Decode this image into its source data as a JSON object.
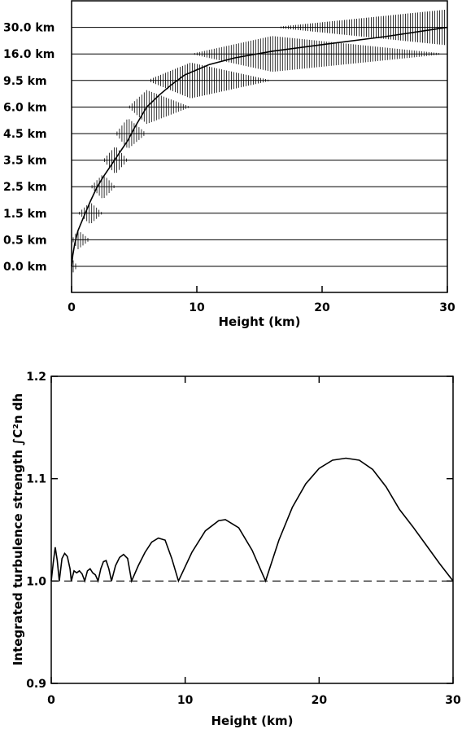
{
  "chart_data": [
    {
      "type": "line",
      "title": "",
      "xlabel": "Height (km)",
      "ylabel": "",
      "xlim": [
        0,
        30
      ],
      "x_ticks": [
        0,
        10,
        20,
        30
      ],
      "layers": [
        {
          "label": "0.0 km",
          "height_km": 0.0
        },
        {
          "label": "0.5 km",
          "height_km": 0.5
        },
        {
          "label": "1.5 km",
          "height_km": 1.5
        },
        {
          "label": "2.5 km",
          "height_km": 2.5
        },
        {
          "label": "3.5 km",
          "height_km": 3.5
        },
        {
          "label": "4.5 km",
          "height_km": 4.5
        },
        {
          "label": "6.0 km",
          "height_km": 6.0
        },
        {
          "label": "9.5 km",
          "height_km": 9.5
        },
        {
          "label": "16.0 km",
          "height_km": 16.0
        },
        {
          "label": "30.0 km",
          "height_km": 30.0
        }
      ],
      "series": [
        {
          "values": [
            [
              0,
              0
            ],
            [
              0.1,
              0.42
            ],
            [
              0.25,
              0.84
            ],
            [
              0.5,
              1.33
            ],
            [
              1.0,
              1.9
            ],
            [
              1.5,
              2.45
            ],
            [
              2.0,
              2.95
            ],
            [
              2.5,
              3.35
            ],
            [
              3.0,
              3.7
            ],
            [
              3.5,
              4.05
            ],
            [
              4.0,
              4.4
            ],
            [
              4.5,
              4.75
            ],
            [
              5.0,
              5.2
            ],
            [
              5.5,
              5.6
            ],
            [
              6.0,
              6.0
            ],
            [
              7.0,
              6.45
            ],
            [
              8.0,
              6.85
            ],
            [
              9.0,
              7.2
            ],
            [
              9.5,
              7.3
            ],
            [
              11.0,
              7.6
            ],
            [
              13.0,
              7.85
            ],
            [
              16.0,
              8.1
            ],
            [
              20.0,
              8.35
            ],
            [
              25.0,
              8.65
            ],
            [
              30.0,
              9.0
            ]
          ]
        }
      ]
    },
    {
      "type": "line",
      "title": "",
      "xlabel": "Height (km)",
      "ylabel": "Integrated turbulence strength ∫C²n dh",
      "xlim": [
        0,
        30
      ],
      "ylim": [
        0.9,
        1.2
      ],
      "x_ticks": [
        0,
        10,
        20,
        30
      ],
      "y_ticks": [
        0.9,
        1.0,
        1.1,
        1.2
      ],
      "y_tick_labels": [
        "0.9",
        "1.0",
        "1.1",
        "1.2"
      ],
      "reference_line": {
        "y": 1.0,
        "style": "dashed"
      },
      "series": [
        {
          "values": [
            [
              0,
              1.0
            ],
            [
              0.15,
              1.018
            ],
            [
              0.3,
              1.033
            ],
            [
              0.45,
              1.02
            ],
            [
              0.6,
              1.0
            ],
            [
              0.8,
              1.022
            ],
            [
              1.0,
              1.027
            ],
            [
              1.2,
              1.024
            ],
            [
              1.4,
              1.012
            ],
            [
              1.5,
              1.0
            ],
            [
              1.7,
              1.01
            ],
            [
              1.9,
              1.008
            ],
            [
              2.1,
              1.01
            ],
            [
              2.3,
              1.007
            ],
            [
              2.5,
              1.0
            ],
            [
              2.7,
              1.01
            ],
            [
              2.9,
              1.012
            ],
            [
              3.1,
              1.008
            ],
            [
              3.3,
              1.006
            ],
            [
              3.5,
              1.0
            ],
            [
              3.7,
              1.012
            ],
            [
              3.9,
              1.019
            ],
            [
              4.1,
              1.02
            ],
            [
              4.3,
              1.012
            ],
            [
              4.5,
              1.0
            ],
            [
              4.8,
              1.015
            ],
            [
              5.1,
              1.023
            ],
            [
              5.4,
              1.026
            ],
            [
              5.7,
              1.022
            ],
            [
              6.0,
              1.0
            ],
            [
              6.5,
              1.015
            ],
            [
              7.0,
              1.028
            ],
            [
              7.5,
              1.038
            ],
            [
              8.0,
              1.042
            ],
            [
              8.5,
              1.04
            ],
            [
              9.0,
              1.022
            ],
            [
              9.5,
              1.0
            ],
            [
              10.5,
              1.028
            ],
            [
              11.5,
              1.049
            ],
            [
              12.5,
              1.059
            ],
            [
              13.0,
              1.06
            ],
            [
              14.0,
              1.052
            ],
            [
              15.0,
              1.03
            ],
            [
              16.0,
              1.0
            ],
            [
              17.0,
              1.04
            ],
            [
              18.0,
              1.072
            ],
            [
              19.0,
              1.095
            ],
            [
              20.0,
              1.11
            ],
            [
              21.0,
              1.118
            ],
            [
              22.0,
              1.12
            ],
            [
              23.0,
              1.118
            ],
            [
              24.0,
              1.109
            ],
            [
              25.0,
              1.092
            ],
            [
              26.0,
              1.07
            ],
            [
              27.0,
              1.053
            ],
            [
              28.0,
              1.035
            ],
            [
              29.0,
              1.017
            ],
            [
              30.0,
              1.0
            ]
          ]
        }
      ]
    }
  ]
}
